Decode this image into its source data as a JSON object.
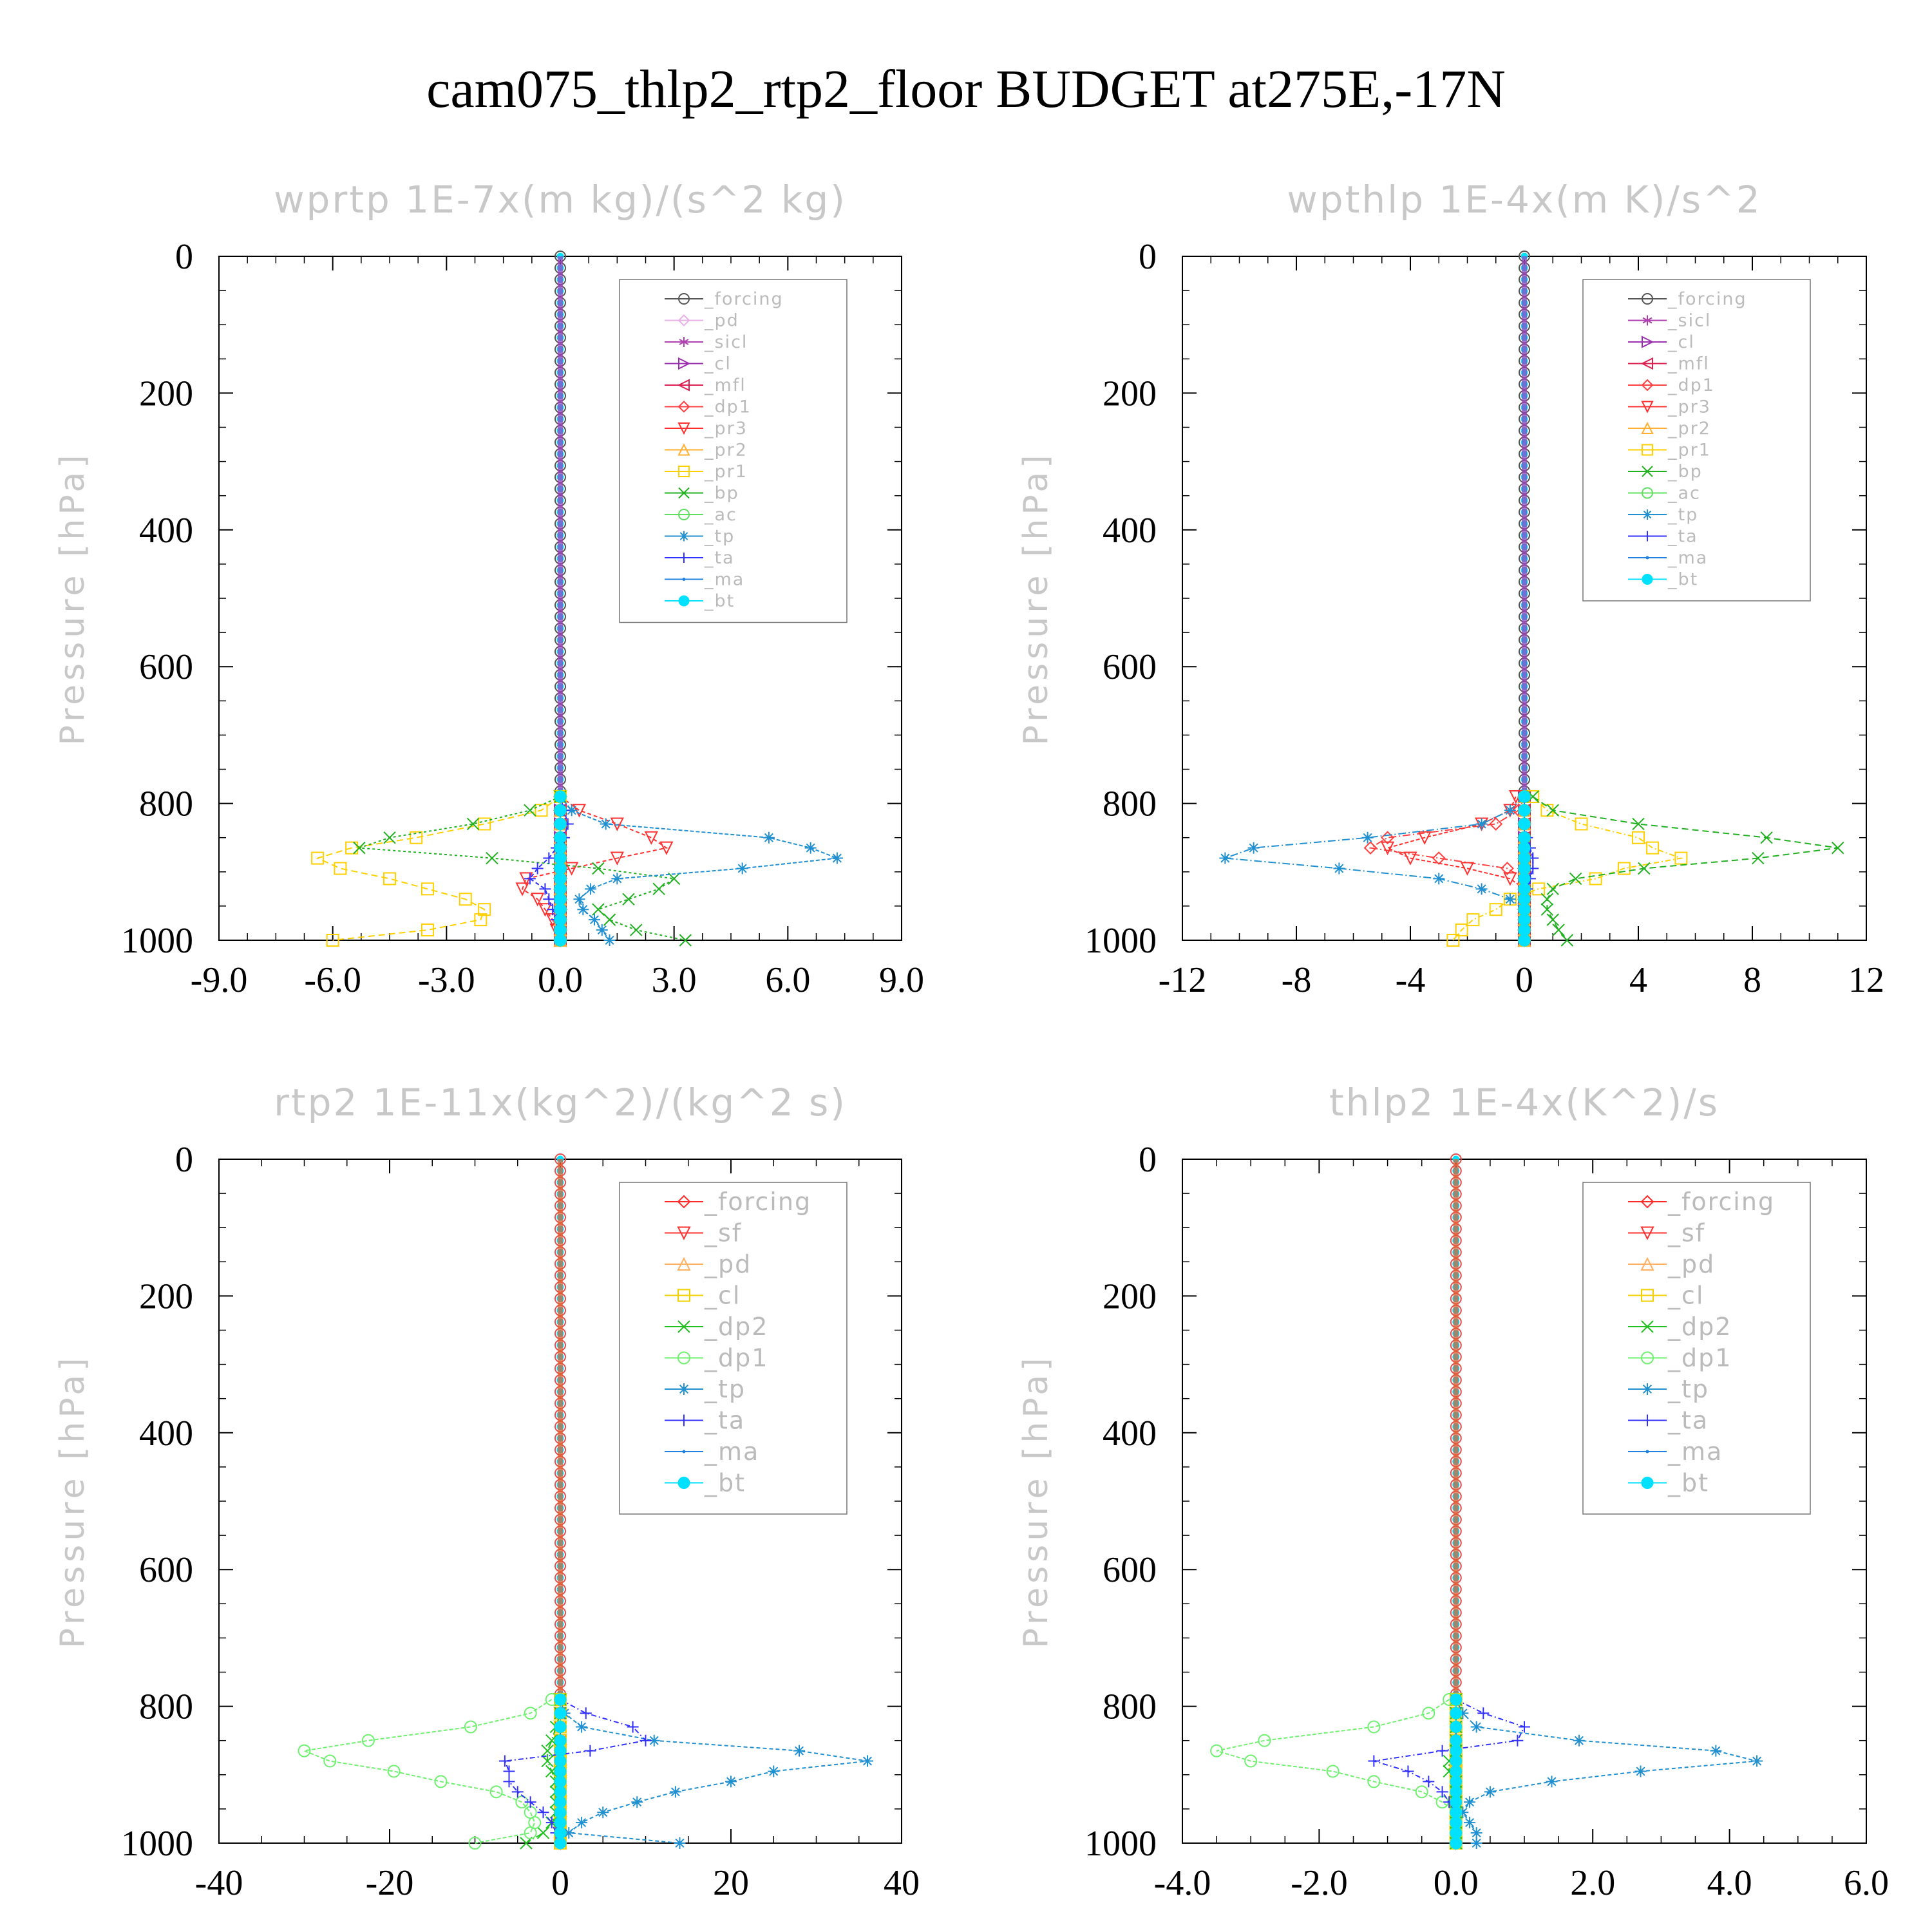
{
  "title": "cam075_thlp2_rtp2_floor  BUDGET at275E,-17N",
  "colors": {
    "_forcing": "#555555",
    "_forcing_red": "#ff2a2a",
    "_pd": "#e8b0e8",
    "_pd_orange": "#ffb060",
    "_sicl": "#b040b0",
    "_cl": "#9a30b0",
    "_cl_yellow": "#f0d000",
    "_mfl": "#dd2050",
    "_dp1": "#ff4040",
    "_dp1_green": "#70f070",
    "_dp2": "#20c020",
    "_sf": "#ff3030",
    "_pr3": "#ff3030",
    "_pr2": "#ffb030",
    "_pr1": "#ffd000",
    "_bp": "#20b020",
    "_ac": "#60e060",
    "_tp": "#2090d0",
    "_ta": "#3030ff",
    "_ma": "#2080e0",
    "_bt": "#00e0ff"
  },
  "chart_data": [
    {
      "type": "line",
      "title": "wprtp  1E-7x(m kg)/(s^2 kg)",
      "ylabel": "Pressure [hPa]",
      "xlim": [
        -9,
        9
      ],
      "ylim": [
        0,
        1000
      ],
      "xticks": [
        "-9.0",
        "-6.0",
        "-3.0",
        "0.0",
        "3.0",
        "6.0",
        "9.0"
      ],
      "yticks": [
        "0",
        "200",
        "400",
        "600",
        "800",
        "1000"
      ],
      "legend": "top-right",
      "y": [
        790,
        810,
        830,
        850,
        865,
        880,
        895,
        910,
        925,
        940,
        955,
        970,
        985,
        1000
      ],
      "series": [
        {
          "name": "_forcing",
          "marker": "circle",
          "values": [
            0,
            0,
            0,
            0,
            0,
            0,
            0,
            0,
            0,
            0,
            0,
            0,
            0,
            0
          ]
        },
        {
          "name": "_pd",
          "marker": "diamond",
          "values": [
            0,
            0,
            0,
            0,
            0,
            0,
            0,
            0,
            0,
            0,
            0,
            0,
            0,
            0
          ]
        },
        {
          "name": "_sicl",
          "marker": "star",
          "values": [
            0,
            0,
            0,
            0,
            0,
            0,
            0,
            0,
            0,
            0,
            0,
            0,
            0,
            0
          ]
        },
        {
          "name": "_cl",
          "marker": "tri-right",
          "values": [
            0,
            0,
            0,
            0,
            0,
            0,
            0,
            0,
            0,
            0,
            0,
            0,
            0,
            0
          ]
        },
        {
          "name": "_mfl",
          "marker": "tri-left",
          "values": [
            0,
            0,
            0,
            0,
            0,
            0,
            0,
            0,
            0,
            0,
            0,
            0,
            0,
            0
          ]
        },
        {
          "name": "_dp1",
          "marker": "diamond",
          "values": [
            0,
            0,
            0,
            0,
            0,
            0,
            0,
            0,
            0,
            0,
            0,
            0,
            0,
            0
          ]
        },
        {
          "name": "_pr3",
          "marker": "tri-down",
          "values": [
            0,
            0.5,
            1.5,
            2.4,
            2.8,
            1.5,
            0.3,
            -0.9,
            -1.0,
            -0.6,
            -0.4,
            -0.2,
            -0.1,
            0
          ]
        },
        {
          "name": "_pr2",
          "marker": "tri-up",
          "values": [
            0,
            0,
            0,
            0,
            0,
            0,
            0,
            0,
            0,
            0,
            0,
            0,
            0,
            0
          ]
        },
        {
          "name": "_pr1",
          "marker": "square",
          "values": [
            0,
            -0.5,
            -2.0,
            -3.8,
            -5.5,
            -6.4,
            -5.8,
            -4.5,
            -3.5,
            -2.5,
            -2.0,
            -2.1,
            -3.5,
            -6.0
          ]
        },
        {
          "name": "_bp",
          "marker": "x",
          "values": [
            0,
            -0.8,
            -2.3,
            -4.5,
            -5.3,
            -1.8,
            1.0,
            3.0,
            2.6,
            1.8,
            1.0,
            1.3,
            2.0,
            3.3
          ]
        },
        {
          "name": "_ac",
          "marker": "circle",
          "values": [
            0,
            0,
            0,
            0,
            0,
            0,
            0,
            0,
            0,
            0,
            0,
            0,
            0,
            0
          ]
        },
        {
          "name": "_tp",
          "marker": "asterisk",
          "values": [
            0,
            0.3,
            1.2,
            5.5,
            6.6,
            7.3,
            4.8,
            1.5,
            0.8,
            0.5,
            0.6,
            0.9,
            1.1,
            1.3
          ]
        },
        {
          "name": "_ta",
          "marker": "plus",
          "values": [
            0,
            0.1,
            0.2,
            0.1,
            -0.1,
            -0.3,
            -0.6,
            -0.8,
            -0.4,
            -0.3,
            -0.2,
            -0.1,
            0,
            0
          ]
        },
        {
          "name": "_ma",
          "marker": "dot",
          "values": [
            0,
            0,
            0,
            0,
            0,
            0,
            0,
            0,
            0,
            0,
            0,
            0,
            0,
            0
          ]
        },
        {
          "name": "_bt",
          "marker": "filled-circle",
          "values": [
            0,
            0,
            0,
            0,
            0,
            0,
            0,
            0,
            0,
            0,
            0,
            0,
            0,
            0
          ]
        }
      ]
    },
    {
      "type": "line",
      "title": "wpthlp  1E-4x(m K)/s^2",
      "ylabel": "Pressure [hPa]",
      "xlim": [
        -12,
        12
      ],
      "ylim": [
        0,
        1000
      ],
      "xticks": [
        "-12",
        "-8",
        "-4",
        "0",
        "4",
        "8",
        "12"
      ],
      "yticks": [
        "0",
        "200",
        "400",
        "600",
        "800",
        "1000"
      ],
      "legend": "top-right",
      "y": [
        790,
        810,
        830,
        850,
        865,
        880,
        895,
        910,
        925,
        940,
        955,
        970,
        985,
        1000
      ],
      "series": [
        {
          "name": "_forcing",
          "marker": "circle",
          "values": [
            0,
            0,
            0,
            0,
            0,
            0,
            0,
            0,
            0,
            0,
            0,
            0,
            0,
            0
          ]
        },
        {
          "name": "_sicl",
          "marker": "star",
          "values": [
            0,
            0,
            0,
            0,
            0,
            0,
            0,
            0,
            0,
            0,
            0,
            0,
            0,
            0
          ]
        },
        {
          "name": "_cl",
          "marker": "tri-right",
          "values": [
            0,
            0,
            0,
            0,
            0,
            0,
            0,
            0,
            0,
            0,
            0,
            0,
            0,
            0
          ]
        },
        {
          "name": "_mfl",
          "marker": "tri-left",
          "values": [
            0,
            0,
            0,
            0,
            0,
            0,
            0,
            0,
            0,
            0,
            0,
            0,
            0,
            0
          ]
        },
        {
          "name": "_dp1",
          "marker": "diamond",
          "values": [
            0,
            -0.2,
            -1.0,
            -4.8,
            -5.4,
            -3.0,
            -0.6,
            0,
            0,
            0,
            0,
            0,
            0,
            0
          ]
        },
        {
          "name": "_pr3",
          "marker": "tri-down",
          "values": [
            -0.3,
            -0.5,
            -1.5,
            -3.5,
            -4.8,
            -4.0,
            -2.0,
            -0.5,
            0,
            0,
            0,
            0,
            0,
            0
          ]
        },
        {
          "name": "_pr2",
          "marker": "tri-up",
          "values": [
            0,
            0,
            0,
            0,
            0,
            0,
            0,
            0,
            0,
            0,
            0,
            0,
            0,
            0
          ]
        },
        {
          "name": "_pr1",
          "marker": "square",
          "values": [
            0.3,
            0.8,
            2.0,
            4.0,
            4.5,
            5.5,
            3.5,
            2.5,
            0.5,
            -0.5,
            -1.0,
            -1.8,
            -2.2,
            -2.5
          ]
        },
        {
          "name": "_bp",
          "marker": "x",
          "values": [
            0.3,
            1.0,
            4.0,
            8.5,
            11.0,
            8.2,
            4.2,
            1.8,
            1.0,
            0.8,
            0.8,
            1.0,
            1.2,
            1.5
          ]
        },
        {
          "name": "_ac",
          "marker": "circle",
          "values": [
            0,
            0,
            0,
            0,
            0,
            0,
            0,
            0,
            0,
            0,
            0,
            0,
            0,
            0
          ]
        },
        {
          "name": "_tp",
          "marker": "asterisk",
          "values": [
            0,
            -0.5,
            -1.5,
            -5.5,
            -9.5,
            -10.5,
            -6.5,
            -3.0,
            -1.5,
            -0.5,
            0,
            0,
            0,
            0
          ]
        },
        {
          "name": "_ta",
          "marker": "plus",
          "values": [
            0,
            0,
            0,
            0.1,
            0.2,
            0.3,
            0.3,
            0.2,
            0.1,
            0,
            0,
            0,
            0,
            0
          ]
        },
        {
          "name": "_ma",
          "marker": "dot",
          "values": [
            0,
            0,
            0,
            0,
            0,
            0,
            0,
            0,
            0,
            0,
            0,
            0,
            0,
            0
          ]
        },
        {
          "name": "_bt",
          "marker": "filled-circle",
          "values": [
            0,
            0,
            0,
            0,
            0,
            0,
            0,
            0,
            0,
            0,
            0,
            0,
            0,
            0
          ]
        }
      ]
    },
    {
      "type": "line",
      "title": "rtp2  1E-11x(kg^2)/(kg^2 s)",
      "ylabel": "Pressure [hPa]",
      "xlim": [
        -40,
        40
      ],
      "ylim": [
        0,
        1000
      ],
      "xticks": [
        "-40",
        "-20",
        "0",
        "20",
        "40"
      ],
      "yticks": [
        "0",
        "200",
        "400",
        "600",
        "800",
        "1000"
      ],
      "legend": "top-right",
      "y": [
        790,
        810,
        830,
        850,
        865,
        880,
        895,
        910,
        925,
        940,
        955,
        970,
        985,
        1000
      ],
      "series": [
        {
          "name": "_forcing",
          "marker": "diamond",
          "values": [
            0,
            0,
            0,
            0,
            0,
            0,
            0,
            0,
            0,
            0,
            0,
            0,
            0,
            0
          ]
        },
        {
          "name": "_sf",
          "marker": "tri-down",
          "values": [
            0,
            0,
            0,
            0,
            0,
            0,
            0,
            0,
            0,
            0,
            0,
            0,
            0,
            0
          ]
        },
        {
          "name": "_pd",
          "marker": "tri-up",
          "values": [
            0,
            0,
            0,
            0,
            0,
            0,
            0,
            0,
            0,
            0,
            0,
            0,
            0,
            0
          ]
        },
        {
          "name": "_cl",
          "marker": "square",
          "values": [
            0,
            0,
            0,
            0,
            0,
            0,
            0,
            0,
            0,
            0,
            0,
            0,
            0,
            0
          ]
        },
        {
          "name": "_dp2",
          "marker": "x",
          "values": [
            0,
            0,
            -0.5,
            -1.0,
            -1.5,
            -1.5,
            -1.0,
            -0.5,
            -0.5,
            -0.5,
            -0.5,
            -1.0,
            -2.0,
            -4.0
          ]
        },
        {
          "name": "_dp1",
          "marker": "circle",
          "values": [
            -1.0,
            -3.5,
            -10.5,
            -22.5,
            -30.0,
            -27.0,
            -19.5,
            -14.0,
            -7.5,
            -4.5,
            -3.5,
            -3.0,
            -3.5,
            -10.0
          ]
        },
        {
          "name": "_tp",
          "marker": "asterisk",
          "values": [
            0,
            0.5,
            2.5,
            11.0,
            28.0,
            36.0,
            25.0,
            20.0,
            13.5,
            9.0,
            5.0,
            2.5,
            1.0,
            14.0
          ]
        },
        {
          "name": "_ta",
          "marker": "plus",
          "values": [
            0,
            3.0,
            8.5,
            10.0,
            3.5,
            -6.5,
            -6.0,
            -6.0,
            -5.0,
            -3.5,
            -2.0,
            -1.0,
            -0.5,
            0
          ]
        },
        {
          "name": "_ma",
          "marker": "dot",
          "values": [
            0,
            0,
            0,
            0,
            0,
            0,
            0,
            0,
            0,
            0,
            0,
            0,
            0,
            0
          ]
        },
        {
          "name": "_bt",
          "marker": "filled-circle",
          "values": [
            0,
            0,
            0,
            0,
            0,
            0,
            0,
            0,
            0,
            0,
            0,
            0,
            0,
            0
          ]
        }
      ]
    },
    {
      "type": "line",
      "title": "thlp2  1E-4x(K^2)/s",
      "ylabel": "Pressure [hPa]",
      "xlim": [
        -4,
        6
      ],
      "ylim": [
        0,
        1000
      ],
      "xticks": [
        "-4.0",
        "-2.0",
        "0.0",
        "2.0",
        "4.0",
        "6.0"
      ],
      "yticks": [
        "0",
        "200",
        "400",
        "600",
        "800",
        "1000"
      ],
      "legend": "top-right",
      "y": [
        790,
        810,
        830,
        850,
        865,
        880,
        895,
        910,
        925,
        940,
        955,
        970,
        985,
        1000
      ],
      "series": [
        {
          "name": "_forcing",
          "marker": "diamond",
          "values": [
            0,
            0,
            0,
            0,
            0,
            0,
            0,
            0,
            0,
            0,
            0,
            0,
            0,
            0
          ]
        },
        {
          "name": "_sf",
          "marker": "tri-down",
          "values": [
            0,
            0,
            0,
            0,
            0,
            0,
            0,
            0,
            0,
            0,
            0,
            0,
            0,
            0
          ]
        },
        {
          "name": "_pd",
          "marker": "tri-up",
          "values": [
            0,
            0,
            0,
            0,
            0,
            0,
            0,
            0,
            0,
            0,
            0,
            0,
            0,
            0
          ]
        },
        {
          "name": "_cl",
          "marker": "square",
          "values": [
            0,
            0,
            0,
            0,
            0,
            0,
            0,
            0,
            0,
            0,
            0,
            0,
            0,
            0
          ]
        },
        {
          "name": "_dp2",
          "marker": "x",
          "values": [
            0,
            0,
            0,
            0,
            0,
            -0.1,
            -0.1,
            0,
            0,
            0,
            0,
            0,
            0,
            0
          ]
        },
        {
          "name": "_dp1",
          "marker": "circle",
          "values": [
            -0.1,
            -0.4,
            -1.2,
            -2.8,
            -3.5,
            -3.0,
            -1.8,
            -1.2,
            -0.5,
            -0.2,
            0,
            0,
            0,
            0
          ]
        },
        {
          "name": "_tp",
          "marker": "asterisk",
          "values": [
            0,
            0.1,
            0.3,
            1.8,
            3.8,
            4.4,
            2.7,
            1.4,
            0.5,
            0.2,
            0.1,
            0.2,
            0.3,
            0.3
          ]
        },
        {
          "name": "_ta",
          "marker": "plus",
          "values": [
            0,
            0.4,
            1.0,
            0.9,
            -0.2,
            -1.2,
            -0.7,
            -0.4,
            -0.2,
            -0.1,
            0,
            0,
            0,
            0
          ]
        },
        {
          "name": "_ma",
          "marker": "dot",
          "values": [
            0,
            0,
            0,
            0,
            0,
            0,
            0,
            0,
            0,
            0,
            0,
            0,
            0,
            0
          ]
        },
        {
          "name": "_bt",
          "marker": "filled-circle",
          "values": [
            0,
            0,
            0,
            0,
            0,
            0,
            0,
            0,
            0,
            0,
            0,
            0,
            0,
            0
          ]
        }
      ]
    }
  ]
}
